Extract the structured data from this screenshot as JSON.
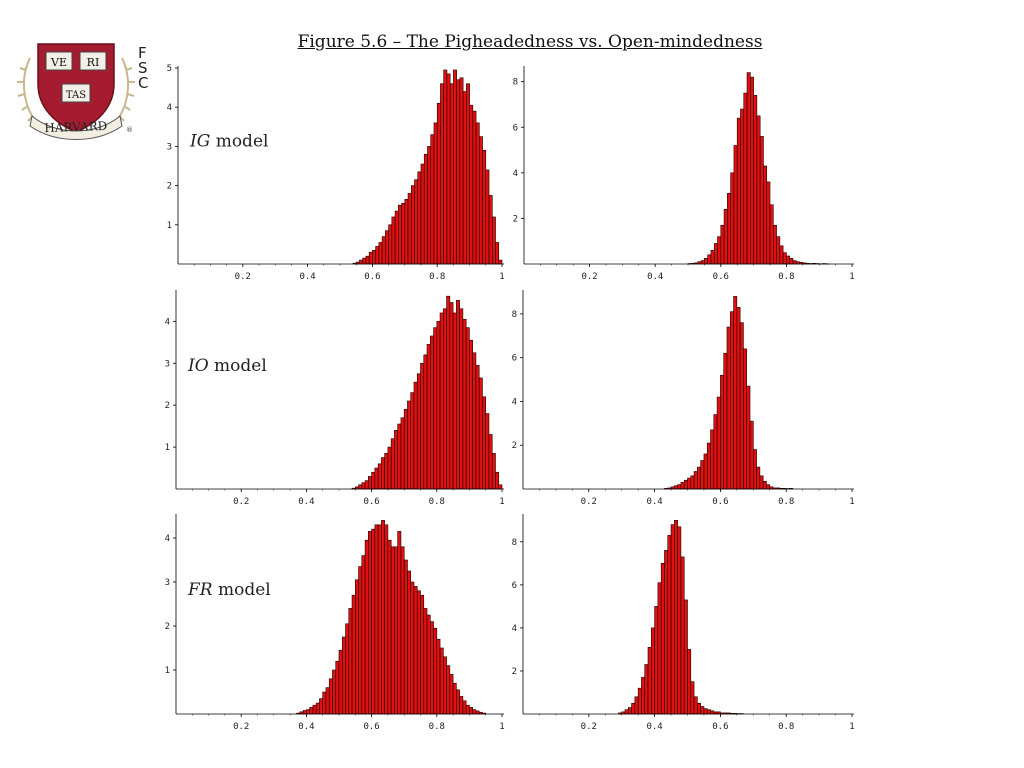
{
  "figure_title": "Figure 5.6 – The Pigheadedness vs. Open-mindedness",
  "side_text": [
    "F",
    "S",
    "C"
  ],
  "logo": {
    "name": "harvard-shield-icon",
    "book_words": [
      "VE",
      "RI",
      "TAS"
    ],
    "banner_text": "HARVARD",
    "mark": "®",
    "shield_color": "#a51c30"
  },
  "bar_color": "#e01010",
  "bar_stroke": "#1a0000",
  "chart_data": [
    {
      "type": "bar",
      "panel": "IG-left",
      "annotation_model": "IG",
      "annotation_suffix": " model",
      "xlim": [
        0,
        1
      ],
      "ylim": [
        0,
        5
      ],
      "xticks": [
        0.2,
        0.4,
        0.6,
        0.8,
        1
      ],
      "xtick_labels": [
        "0.2",
        "0.4",
        "0.6",
        "0.8",
        "1"
      ],
      "yticks": [
        1,
        2,
        3,
        4,
        5
      ],
      "ytick_labels": [
        "1",
        "2",
        "3",
        "4",
        "5"
      ],
      "bin_width": 0.01,
      "x": [
        0.54,
        0.55,
        0.56,
        0.57,
        0.58,
        0.59,
        0.6,
        0.61,
        0.62,
        0.63,
        0.64,
        0.65,
        0.66,
        0.67,
        0.68,
        0.69,
        0.7,
        0.71,
        0.72,
        0.73,
        0.74,
        0.75,
        0.76,
        0.77,
        0.78,
        0.79,
        0.8,
        0.81,
        0.82,
        0.83,
        0.84,
        0.85,
        0.86,
        0.87,
        0.88,
        0.89,
        0.9,
        0.91,
        0.92,
        0.93,
        0.94,
        0.95,
        0.96,
        0.97,
        0.98,
        0.99
      ],
      "values": [
        0.02,
        0.05,
        0.1,
        0.15,
        0.2,
        0.3,
        0.35,
        0.45,
        0.55,
        0.7,
        0.85,
        1.0,
        1.2,
        1.35,
        1.5,
        1.55,
        1.65,
        1.8,
        2.0,
        2.15,
        2.35,
        2.55,
        2.8,
        3.0,
        3.3,
        3.6,
        4.1,
        4.6,
        4.95,
        4.85,
        4.6,
        4.95,
        4.7,
        4.75,
        4.4,
        4.6,
        4.05,
        3.9,
        3.6,
        3.25,
        2.9,
        2.4,
        1.75,
        1.2,
        0.55,
        0.1
      ]
    },
    {
      "type": "bar",
      "panel": "IG-right",
      "xlim": [
        0,
        1
      ],
      "ylim": [
        0,
        8.6
      ],
      "xticks": [
        0.2,
        0.4,
        0.6,
        0.8,
        1
      ],
      "xtick_labels": [
        "0.2",
        "0.4",
        "0.6",
        "0.8",
        "1"
      ],
      "yticks": [
        2,
        4,
        6,
        8
      ],
      "ytick_labels": [
        "2",
        "4",
        "6",
        "8"
      ],
      "bin_width": 0.01,
      "x": [
        0.5,
        0.51,
        0.52,
        0.53,
        0.54,
        0.55,
        0.56,
        0.57,
        0.58,
        0.59,
        0.6,
        0.61,
        0.62,
        0.63,
        0.64,
        0.65,
        0.66,
        0.67,
        0.68,
        0.69,
        0.7,
        0.71,
        0.72,
        0.73,
        0.74,
        0.75,
        0.76,
        0.77,
        0.78,
        0.79,
        0.8,
        0.81,
        0.82,
        0.83,
        0.84,
        0.85,
        0.86,
        0.87,
        0.88,
        0.89,
        0.9,
        0.91,
        0.92
      ],
      "values": [
        0.02,
        0.03,
        0.05,
        0.1,
        0.15,
        0.25,
        0.4,
        0.6,
        0.9,
        1.2,
        1.7,
        2.4,
        3.1,
        4.0,
        5.2,
        6.4,
        6.8,
        7.5,
        8.4,
        8.2,
        7.4,
        6.5,
        5.6,
        4.3,
        3.6,
        2.6,
        1.7,
        1.2,
        0.8,
        0.5,
        0.35,
        0.25,
        0.15,
        0.1,
        0.07,
        0.05,
        0.03,
        0.02,
        0.03,
        0.02,
        0.01,
        0.02,
        0.01
      ]
    },
    {
      "type": "bar",
      "panel": "IO-left",
      "annotation_model": "IO",
      "annotation_suffix": " model",
      "xlim": [
        0,
        1
      ],
      "ylim": [
        0,
        4.7
      ],
      "xticks": [
        0.2,
        0.4,
        0.6,
        0.8,
        1
      ],
      "xtick_labels": [
        "0.2",
        "0.4",
        "0.6",
        "0.8",
        "1"
      ],
      "yticks": [
        1,
        2,
        3,
        4
      ],
      "ytick_labels": [
        "1",
        "2",
        "3",
        "4"
      ],
      "bin_width": 0.01,
      "x": [
        0.54,
        0.55,
        0.56,
        0.57,
        0.58,
        0.59,
        0.6,
        0.61,
        0.62,
        0.63,
        0.64,
        0.65,
        0.66,
        0.67,
        0.68,
        0.69,
        0.7,
        0.71,
        0.72,
        0.73,
        0.74,
        0.75,
        0.76,
        0.77,
        0.78,
        0.79,
        0.8,
        0.81,
        0.82,
        0.83,
        0.84,
        0.85,
        0.86,
        0.87,
        0.88,
        0.89,
        0.9,
        0.91,
        0.92,
        0.93,
        0.94,
        0.95,
        0.96,
        0.97,
        0.98,
        0.99
      ],
      "values": [
        0.02,
        0.05,
        0.1,
        0.15,
        0.2,
        0.3,
        0.4,
        0.5,
        0.6,
        0.75,
        0.85,
        1.0,
        1.2,
        1.4,
        1.55,
        1.7,
        1.9,
        2.1,
        2.3,
        2.55,
        2.75,
        3.0,
        3.2,
        3.45,
        3.65,
        3.85,
        4.0,
        4.2,
        4.3,
        4.6,
        4.45,
        4.2,
        4.5,
        4.3,
        4.05,
        3.85,
        3.55,
        3.25,
        2.95,
        2.65,
        2.2,
        1.8,
        1.3,
        0.85,
        0.4,
        0.1
      ]
    },
    {
      "type": "bar",
      "panel": "IO-right",
      "xlim": [
        0,
        1
      ],
      "ylim": [
        0,
        9.0
      ],
      "xticks": [
        0.2,
        0.4,
        0.6,
        0.8,
        1
      ],
      "xtick_labels": [
        "0.2",
        "0.4",
        "0.6",
        "0.8",
        "1"
      ],
      "yticks": [
        2,
        4,
        6,
        8
      ],
      "ytick_labels": [
        "2",
        "4",
        "6",
        "8"
      ],
      "bin_width": 0.01,
      "x": [
        0.43,
        0.44,
        0.45,
        0.46,
        0.47,
        0.48,
        0.49,
        0.5,
        0.51,
        0.52,
        0.53,
        0.54,
        0.55,
        0.56,
        0.57,
        0.58,
        0.59,
        0.6,
        0.61,
        0.62,
        0.63,
        0.64,
        0.65,
        0.66,
        0.67,
        0.68,
        0.69,
        0.7,
        0.71,
        0.72,
        0.73,
        0.74,
        0.75,
        0.76,
        0.77,
        0.78,
        0.79,
        0.8,
        0.81
      ],
      "values": [
        0.03,
        0.05,
        0.1,
        0.15,
        0.2,
        0.3,
        0.4,
        0.5,
        0.6,
        0.8,
        1.0,
        1.3,
        1.6,
        2.1,
        2.7,
        3.4,
        4.2,
        5.2,
        6.2,
        7.4,
        8.1,
        8.8,
        8.3,
        7.6,
        6.4,
        4.7,
        3.1,
        1.8,
        1.0,
        0.6,
        0.35,
        0.2,
        0.1,
        0.05,
        0.05,
        0.03,
        0.03,
        0.02,
        0.03
      ]
    },
    {
      "type": "bar",
      "panel": "FR-left",
      "annotation_model": "FR",
      "annotation_suffix": " model",
      "xlim": [
        0,
        1
      ],
      "ylim": [
        0,
        4.5
      ],
      "xticks": [
        0.2,
        0.4,
        0.6,
        0.8,
        1
      ],
      "xtick_labels": [
        "0.2",
        "0.4",
        "0.6",
        "0.8",
        "1"
      ],
      "yticks": [
        1,
        2,
        3,
        4
      ],
      "ytick_labels": [
        "1",
        "2",
        "3",
        "4"
      ],
      "bin_width": 0.01,
      "x": [
        0.37,
        0.38,
        0.39,
        0.4,
        0.41,
        0.42,
        0.43,
        0.44,
        0.45,
        0.46,
        0.47,
        0.48,
        0.49,
        0.5,
        0.51,
        0.52,
        0.53,
        0.54,
        0.55,
        0.56,
        0.57,
        0.58,
        0.59,
        0.6,
        0.61,
        0.62,
        0.63,
        0.64,
        0.65,
        0.66,
        0.67,
        0.68,
        0.69,
        0.7,
        0.71,
        0.72,
        0.73,
        0.74,
        0.75,
        0.76,
        0.77,
        0.78,
        0.79,
        0.8,
        0.81,
        0.82,
        0.83,
        0.84,
        0.85,
        0.86,
        0.87,
        0.88,
        0.89,
        0.9,
        0.91,
        0.92,
        0.93,
        0.94
      ],
      "values": [
        0.02,
        0.05,
        0.08,
        0.1,
        0.15,
        0.2,
        0.25,
        0.35,
        0.5,
        0.6,
        0.8,
        1.0,
        1.2,
        1.45,
        1.75,
        2.05,
        2.4,
        2.7,
        3.05,
        3.35,
        3.6,
        3.95,
        4.15,
        4.2,
        4.3,
        4.3,
        4.4,
        4.3,
        3.95,
        3.8,
        3.8,
        4.15,
        3.8,
        3.5,
        3.25,
        3.0,
        2.9,
        2.8,
        2.7,
        2.4,
        2.25,
        2.1,
        1.95,
        1.7,
        1.5,
        1.3,
        1.1,
        0.9,
        0.7,
        0.55,
        0.4,
        0.3,
        0.2,
        0.15,
        0.1,
        0.07,
        0.04,
        0.02
      ]
    },
    {
      "type": "bar",
      "panel": "FR-right",
      "xlim": [
        0,
        1
      ],
      "ylim": [
        0,
        9.2
      ],
      "xticks": [
        0.2,
        0.4,
        0.6,
        0.8,
        1
      ],
      "xtick_labels": [
        "0.2",
        "0.4",
        "0.6",
        "0.8",
        "1"
      ],
      "yticks": [
        2,
        4,
        6,
        8
      ],
      "ytick_labels": [
        "2",
        "4",
        "6",
        "8"
      ],
      "bin_width": 0.01,
      "x": [
        0.29,
        0.3,
        0.31,
        0.32,
        0.33,
        0.34,
        0.35,
        0.36,
        0.37,
        0.38,
        0.39,
        0.4,
        0.41,
        0.42,
        0.43,
        0.44,
        0.45,
        0.46,
        0.47,
        0.48,
        0.49,
        0.5,
        0.51,
        0.52,
        0.53,
        0.54,
        0.55,
        0.56,
        0.57,
        0.58,
        0.59,
        0.6,
        0.61,
        0.62,
        0.63,
        0.64,
        0.65,
        0.66
      ],
      "values": [
        0.05,
        0.1,
        0.2,
        0.3,
        0.5,
        0.8,
        1.2,
        1.7,
        2.3,
        3.1,
        4.0,
        5.0,
        6.1,
        7.0,
        7.6,
        8.3,
        8.8,
        9.0,
        8.7,
        7.3,
        5.3,
        3.0,
        1.5,
        0.8,
        0.5,
        0.35,
        0.25,
        0.2,
        0.15,
        0.1,
        0.1,
        0.05,
        0.05,
        0.05,
        0.03,
        0.03,
        0.02,
        0.02
      ]
    }
  ]
}
